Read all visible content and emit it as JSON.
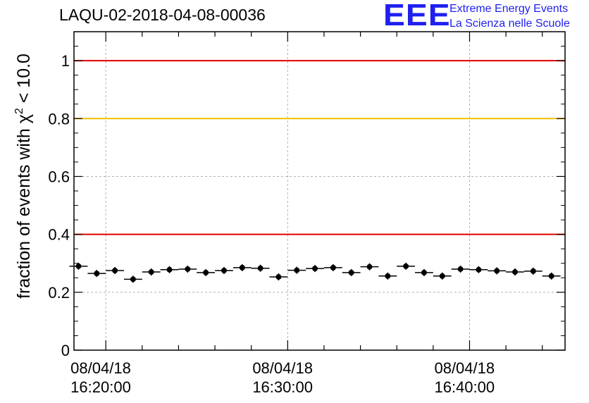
{
  "title": "LAQU-02-2018-04-08-00036",
  "logo": {
    "mark": "EEE",
    "line1": "Extreme Energy Events",
    "line2": "La Scienza nelle Scuole",
    "color": "#1f1ff0"
  },
  "chart_data": {
    "type": "scatter",
    "title": "LAQU-02-2018-04-08-00036",
    "xlabel": "",
    "ylabel": "fraction of events with χ² < 10.0",
    "ylabel_parts": {
      "pre": "fraction of events with χ",
      "sup": "2",
      "post": " < 10.0"
    },
    "ylim": [
      0,
      1.1
    ],
    "yticks": [
      {
        "value": 0,
        "label": "0"
      },
      {
        "value": 0.2,
        "label": "0.2"
      },
      {
        "value": 0.4,
        "label": "0.4"
      },
      {
        "value": 0.6,
        "label": "0.6"
      },
      {
        "value": 0.8,
        "label": "0.8"
      },
      {
        "value": 1,
        "label": "1"
      }
    ],
    "xlim_minutes": [
      18.25,
      45.25
    ],
    "xticks": [
      {
        "minute": 20,
        "date": "08/04/18",
        "time": "16:20:00"
      },
      {
        "minute": 30,
        "date": "08/04/18",
        "time": "16:30:00"
      },
      {
        "minute": 40,
        "date": "08/04/18",
        "time": "16:40:00"
      }
    ],
    "bin_width_minutes": 1,
    "grid": true,
    "reference_lines": [
      {
        "value": 1.0,
        "color": "#e00000"
      },
      {
        "value": 0.8,
        "color": "#f0c000"
      },
      {
        "value": 0.4,
        "color": "#e00000"
      }
    ],
    "series": [
      {
        "color": "#000000",
        "x": [
          18.5,
          19.5,
          20.5,
          21.5,
          22.5,
          23.5,
          24.5,
          25.5,
          26.5,
          27.5,
          28.5,
          29.5,
          30.5,
          31.5,
          32.5,
          33.5,
          34.5,
          35.5,
          36.5,
          37.5,
          38.5,
          39.5,
          40.5,
          41.5,
          42.5,
          43.5,
          44.5
        ],
        "y": [
          0.29,
          0.265,
          0.275,
          0.245,
          0.27,
          0.278,
          0.28,
          0.268,
          0.275,
          0.285,
          0.283,
          0.253,
          0.276,
          0.282,
          0.285,
          0.268,
          0.288,
          0.256,
          0.29,
          0.268,
          0.256,
          0.28,
          0.278,
          0.274,
          0.27,
          0.273,
          0.256
        ]
      }
    ]
  }
}
